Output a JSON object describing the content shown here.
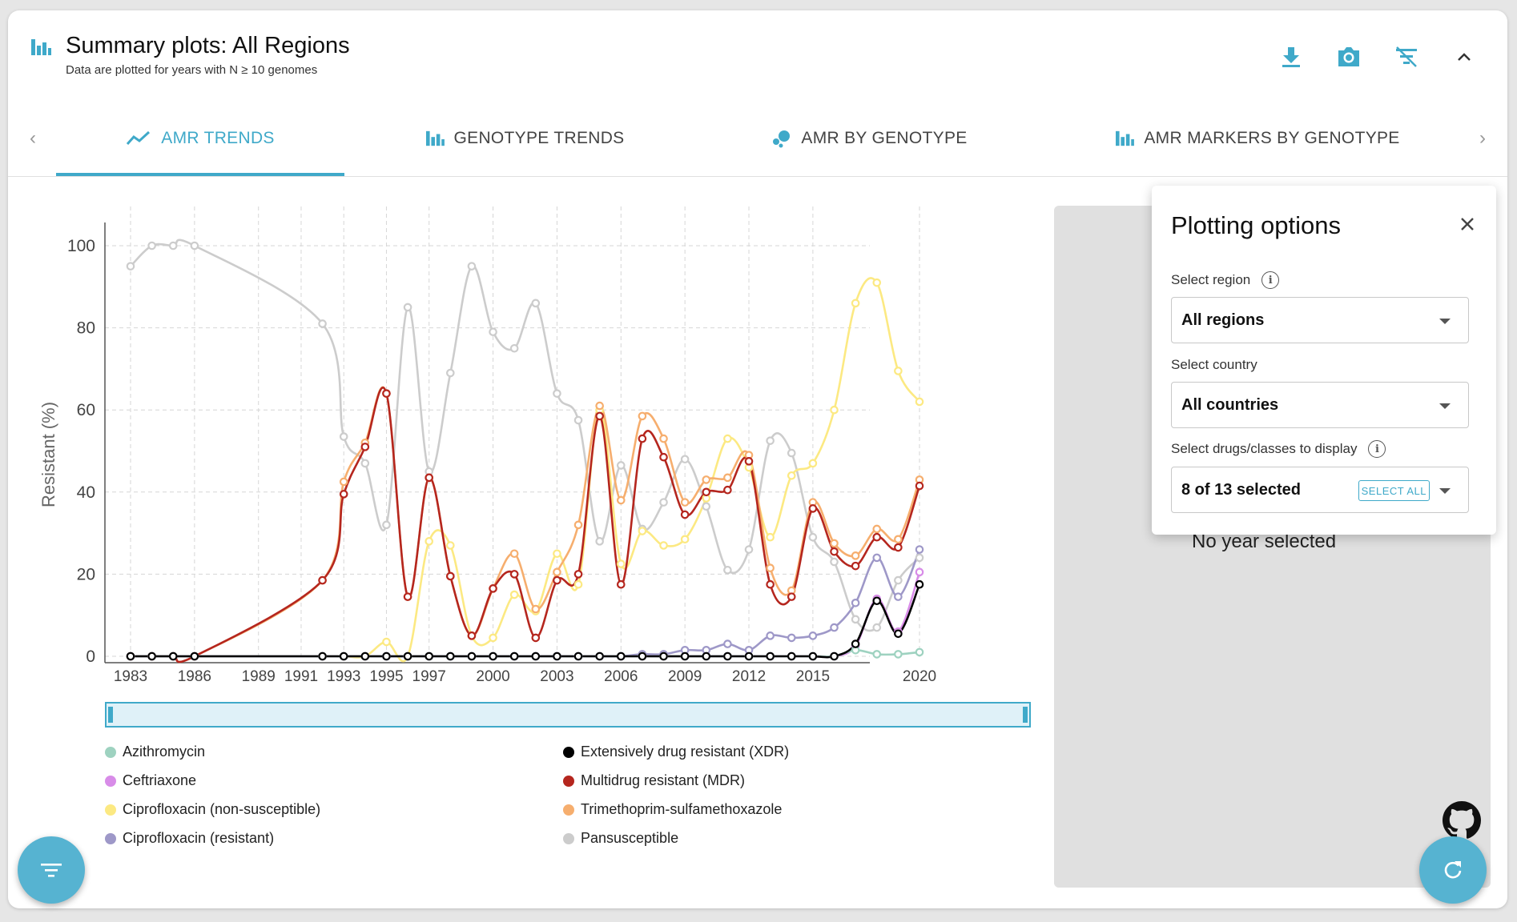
{
  "header": {
    "title": "Summary plots: All Regions",
    "subtitle": "Data are plotted for years with N ≥ 10 genomes",
    "icons": [
      "chart-bars-icon",
      "download-icon",
      "camera-icon",
      "filter-off-icon",
      "chevron-up-icon"
    ]
  },
  "tabs": [
    {
      "label": "AMR TRENDS",
      "icon": "trend-line-icon",
      "active": true
    },
    {
      "label": "GENOTYPE TRENDS",
      "icon": "chart-bars-icon",
      "active": false
    },
    {
      "label": "AMR BY GENOTYPE",
      "icon": "bubble-icon",
      "active": false
    },
    {
      "label": "AMR MARKERS BY GENOTYPE",
      "icon": "chart-bars-icon",
      "active": false
    }
  ],
  "plotting_options": {
    "title": "Plotting options",
    "region_label": "Select region",
    "region_value": "All regions",
    "country_label": "Select country",
    "country_value": "All countries",
    "drugs_label": "Select drugs/classes to display",
    "drugs_value": "8 of 13 selected",
    "select_all_label": "SELECT ALL"
  },
  "side_panel": {
    "no_year_text": "No year selected"
  },
  "colors": {
    "accent": "#3fa9c9",
    "fab": "#56b3d1"
  },
  "chart_data": {
    "type": "line",
    "ylabel": "Resistant (%)",
    "xlabel": "",
    "ylim": [
      0,
      100
    ],
    "xlim": [
      1983,
      2020
    ],
    "yticks": [
      0,
      20,
      40,
      60,
      80,
      100
    ],
    "xticks": [
      1983,
      1986,
      1989,
      1991,
      1993,
      1995,
      1997,
      2000,
      2003,
      2006,
      2009,
      2012,
      2015,
      2020
    ],
    "grid": true,
    "legend_position": "bottom",
    "series": [
      {
        "name": "Pansusceptible",
        "color": "#cccccc",
        "points": [
          [
            1983,
            95
          ],
          [
            1984,
            100
          ],
          [
            1985,
            100
          ],
          [
            1986,
            100
          ],
          [
            1992,
            81
          ],
          [
            1993,
            53.5
          ],
          [
            1994,
            47
          ],
          [
            1995,
            32
          ],
          [
            1996,
            85
          ],
          [
            1997,
            45
          ],
          [
            1998,
            69
          ],
          [
            1999,
            95
          ],
          [
            2000,
            79
          ],
          [
            2001,
            75
          ],
          [
            2002,
            86
          ],
          [
            2003,
            64
          ],
          [
            2004,
            57.5
          ],
          [
            2005,
            28
          ],
          [
            2006,
            46.5
          ],
          [
            2007,
            31
          ],
          [
            2008,
            37.5
          ],
          [
            2009,
            48
          ],
          [
            2010,
            36.5
          ],
          [
            2011,
            21
          ],
          [
            2012,
            26
          ],
          [
            2013,
            52.5
          ],
          [
            2014,
            49.5
          ],
          [
            2015,
            29
          ],
          [
            2016,
            23
          ],
          [
            2017,
            9
          ],
          [
            2018,
            7
          ],
          [
            2019,
            18.5
          ],
          [
            2020,
            24
          ]
        ]
      },
      {
        "name": "Ciprofloxacin (non-susceptible)",
        "color": "#fce982",
        "points": [
          [
            1983,
            0
          ],
          [
            1984,
            0
          ],
          [
            1985,
            0
          ],
          [
            1986,
            0
          ],
          [
            1992,
            0
          ],
          [
            1993,
            0
          ],
          [
            1994,
            0
          ],
          [
            1995,
            3.5
          ],
          [
            1996,
            0
          ],
          [
            1997,
            28
          ],
          [
            1998,
            27
          ],
          [
            1999,
            5
          ],
          [
            2000,
            4.5
          ],
          [
            2001,
            15
          ],
          [
            2002,
            11
          ],
          [
            2003,
            25
          ],
          [
            2004,
            17.5
          ],
          [
            2005,
            60
          ],
          [
            2006,
            22.5
          ],
          [
            2007,
            30.5
          ],
          [
            2008,
            27
          ],
          [
            2009,
            28.5
          ],
          [
            2010,
            38.5
          ],
          [
            2011,
            53
          ],
          [
            2012,
            46
          ],
          [
            2013,
            29
          ],
          [
            2014,
            44
          ],
          [
            2015,
            47
          ],
          [
            2016,
            60
          ],
          [
            2017,
            86
          ],
          [
            2018,
            91
          ],
          [
            2019,
            69.5
          ],
          [
            2020,
            62
          ]
        ]
      },
      {
        "name": "Trimethoprim-sulfamethoxazole",
        "color": "#f6ae6e",
        "points": [
          [
            1983,
            0
          ],
          [
            1984,
            0
          ],
          [
            1985,
            0
          ],
          [
            1986,
            0
          ],
          [
            1992,
            18.5
          ],
          [
            1993,
            42.5
          ],
          [
            1994,
            52
          ],
          [
            1995,
            64
          ],
          [
            1996,
            14.5
          ],
          [
            1997,
            43.5
          ],
          [
            1998,
            19.5
          ],
          [
            1999,
            5
          ],
          [
            2000,
            16.5
          ],
          [
            2001,
            25
          ],
          [
            2002,
            11.5
          ],
          [
            2003,
            20.5
          ],
          [
            2004,
            32
          ],
          [
            2005,
            61
          ],
          [
            2006,
            38
          ],
          [
            2007,
            58.5
          ],
          [
            2008,
            53
          ],
          [
            2009,
            37.5
          ],
          [
            2010,
            43
          ],
          [
            2011,
            43.5
          ],
          [
            2012,
            49
          ],
          [
            2013,
            21.5
          ],
          [
            2014,
            16
          ],
          [
            2015,
            37.5
          ],
          [
            2016,
            27.5
          ],
          [
            2017,
            24.5
          ],
          [
            2018,
            31
          ],
          [
            2019,
            28.5
          ],
          [
            2020,
            43
          ]
        ]
      },
      {
        "name": "Multidrug resistant (MDR)",
        "color": "#b5261e",
        "points": [
          [
            1983,
            0
          ],
          [
            1984,
            0
          ],
          [
            1985,
            0
          ],
          [
            1986,
            0
          ],
          [
            1992,
            18.5
          ],
          [
            1993,
            39.5
          ],
          [
            1994,
            51
          ],
          [
            1995,
            64
          ],
          [
            1996,
            14.5
          ],
          [
            1997,
            43.5
          ],
          [
            1998,
            19.5
          ],
          [
            1999,
            5
          ],
          [
            2000,
            16.5
          ],
          [
            2001,
            20
          ],
          [
            2002,
            4.5
          ],
          [
            2003,
            18.5
          ],
          [
            2004,
            20
          ],
          [
            2005,
            58.5
          ],
          [
            2006,
            17.5
          ],
          [
            2007,
            53
          ],
          [
            2008,
            48.5
          ],
          [
            2009,
            34.5
          ],
          [
            2010,
            40
          ],
          [
            2011,
            40.5
          ],
          [
            2012,
            47.5
          ],
          [
            2013,
            17.5
          ],
          [
            2014,
            14.5
          ],
          [
            2015,
            36
          ],
          [
            2016,
            25.5
          ],
          [
            2017,
            22
          ],
          [
            2018,
            29
          ],
          [
            2019,
            26.5
          ],
          [
            2020,
            41.5
          ]
        ]
      },
      {
        "name": "Ciprofloxacin (resistant)",
        "color": "#9e98c8",
        "points": [
          [
            1983,
            0
          ],
          [
            1984,
            0
          ],
          [
            1985,
            0
          ],
          [
            1986,
            0
          ],
          [
            1992,
            0
          ],
          [
            1993,
            0
          ],
          [
            1994,
            0
          ],
          [
            1995,
            0
          ],
          [
            1996,
            0
          ],
          [
            1997,
            0
          ],
          [
            1998,
            0
          ],
          [
            1999,
            0
          ],
          [
            2000,
            0
          ],
          [
            2001,
            0
          ],
          [
            2002,
            0
          ],
          [
            2003,
            0
          ],
          [
            2004,
            0
          ],
          [
            2005,
            0
          ],
          [
            2006,
            0
          ],
          [
            2007,
            0.5
          ],
          [
            2008,
            0.5
          ],
          [
            2009,
            1.5
          ],
          [
            2010,
            1.5
          ],
          [
            2011,
            3
          ],
          [
            2012,
            1.5
          ],
          [
            2013,
            5
          ],
          [
            2014,
            4.5
          ],
          [
            2015,
            5
          ],
          [
            2016,
            7
          ],
          [
            2017,
            13
          ],
          [
            2018,
            24
          ],
          [
            2019,
            14.5
          ],
          [
            2020,
            26
          ]
        ]
      },
      {
        "name": "Ceftriaxone",
        "color": "#d88ce8",
        "points": [
          [
            1983,
            0
          ],
          [
            1984,
            0
          ],
          [
            1985,
            0
          ],
          [
            1986,
            0
          ],
          [
            1992,
            0
          ],
          [
            1993,
            0
          ],
          [
            1994,
            0
          ],
          [
            1995,
            0
          ],
          [
            1996,
            0
          ],
          [
            1997,
            0
          ],
          [
            1998,
            0
          ],
          [
            1999,
            0
          ],
          [
            2000,
            0
          ],
          [
            2001,
            0
          ],
          [
            2002,
            0
          ],
          [
            2003,
            0
          ],
          [
            2004,
            0
          ],
          [
            2005,
            0
          ],
          [
            2006,
            0
          ],
          [
            2007,
            0
          ],
          [
            2008,
            0
          ],
          [
            2009,
            0
          ],
          [
            2010,
            0
          ],
          [
            2011,
            0
          ],
          [
            2012,
            0
          ],
          [
            2013,
            0
          ],
          [
            2014,
            0
          ],
          [
            2015,
            0
          ],
          [
            2016,
            0
          ],
          [
            2017,
            2.5
          ],
          [
            2018,
            14
          ],
          [
            2019,
            6
          ],
          [
            2020,
            20.5
          ]
        ]
      },
      {
        "name": "Azithromycin",
        "color": "#9ed2c0",
        "points": [
          [
            1983,
            0
          ],
          [
            1984,
            0
          ],
          [
            1985,
            0
          ],
          [
            1986,
            0
          ],
          [
            1992,
            0
          ],
          [
            1993,
            0
          ],
          [
            1994,
            0
          ],
          [
            1995,
            0
          ],
          [
            1996,
            0
          ],
          [
            1997,
            0
          ],
          [
            1998,
            0
          ],
          [
            1999,
            0
          ],
          [
            2000,
            0
          ],
          [
            2001,
            0
          ],
          [
            2002,
            0
          ],
          [
            2003,
            0
          ],
          [
            2004,
            0
          ],
          [
            2005,
            0
          ],
          [
            2006,
            0
          ],
          [
            2007,
            0
          ],
          [
            2008,
            0
          ],
          [
            2009,
            0
          ],
          [
            2010,
            0
          ],
          [
            2011,
            0
          ],
          [
            2012,
            0
          ],
          [
            2013,
            0
          ],
          [
            2014,
            0
          ],
          [
            2015,
            0
          ],
          [
            2016,
            0
          ],
          [
            2017,
            1.5
          ],
          [
            2018,
            0.5
          ],
          [
            2019,
            0.5
          ],
          [
            2020,
            1
          ]
        ]
      },
      {
        "name": "Extensively drug resistant (XDR)",
        "color": "#000000",
        "points": [
          [
            1983,
            0
          ],
          [
            1984,
            0
          ],
          [
            1985,
            0
          ],
          [
            1986,
            0
          ],
          [
            1992,
            0
          ],
          [
            1993,
            0
          ],
          [
            1994,
            0
          ],
          [
            1995,
            0
          ],
          [
            1996,
            0
          ],
          [
            1997,
            0
          ],
          [
            1998,
            0
          ],
          [
            1999,
            0
          ],
          [
            2000,
            0
          ],
          [
            2001,
            0
          ],
          [
            2002,
            0
          ],
          [
            2003,
            0
          ],
          [
            2004,
            0
          ],
          [
            2005,
            0
          ],
          [
            2006,
            0
          ],
          [
            2007,
            0
          ],
          [
            2008,
            0
          ],
          [
            2009,
            0
          ],
          [
            2010,
            0
          ],
          [
            2011,
            0
          ],
          [
            2012,
            0
          ],
          [
            2013,
            0
          ],
          [
            2014,
            0
          ],
          [
            2015,
            0
          ],
          [
            2016,
            0
          ],
          [
            2017,
            3
          ],
          [
            2018,
            13.5
          ],
          [
            2019,
            5.5
          ],
          [
            2020,
            17.5
          ]
        ]
      }
    ],
    "legend": [
      {
        "name": "Azithromycin",
        "color": "#9ed2c0"
      },
      {
        "name": "Ceftriaxone",
        "color": "#d88ce8"
      },
      {
        "name": "Ciprofloxacin (non-susceptible)",
        "color": "#fce982"
      },
      {
        "name": "Ciprofloxacin (resistant)",
        "color": "#9e98c8"
      },
      {
        "name": "Extensively drug resistant (XDR)",
        "color": "#000000"
      },
      {
        "name": "Multidrug resistant (MDR)",
        "color": "#b5261e"
      },
      {
        "name": "Trimethoprim-sulfamethoxazole",
        "color": "#f6ae6e"
      },
      {
        "name": "Pansusceptible",
        "color": "#cccccc"
      }
    ]
  }
}
